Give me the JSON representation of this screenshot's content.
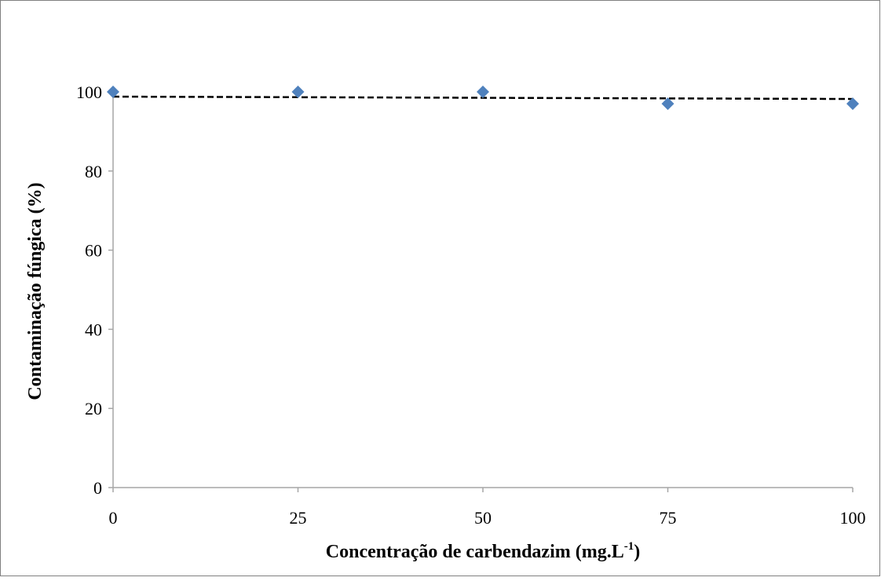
{
  "chart_data": {
    "type": "scatter",
    "title": "",
    "xlabel": "Concentração de carbendazim (mg.L",
    "xlabel_superscript": "-1",
    "xlabel_suffix": ")",
    "ylabel": "Contaminação fúngica (%)",
    "x_ticks": [
      "0",
      "25",
      "50",
      "75",
      "100"
    ],
    "y_ticks": [
      "0",
      "20",
      "40",
      "60",
      "80",
      "100"
    ],
    "xlim": [
      0,
      100
    ],
    "ylim": [
      0,
      100
    ],
    "grid": false,
    "legend": "none",
    "series": [
      {
        "x": [
          0,
          25,
          50,
          75,
          100
        ],
        "y": [
          100,
          100,
          100,
          97,
          97
        ],
        "marker": "diamond",
        "color": "#4f81bd"
      }
    ],
    "trendline": {
      "style": "dashed",
      "color": "#000000",
      "x": [
        0,
        100
      ],
      "y": [
        98.8,
        98.2
      ]
    },
    "axis_color": "#a6a6a6",
    "frame_color": "#808080"
  }
}
